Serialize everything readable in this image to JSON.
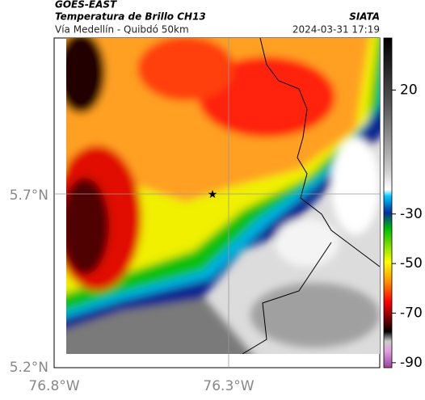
{
  "header": {
    "title": "GOES-EAST",
    "subtitle": "Temperatura de Brillo CH13",
    "source": "SIATA",
    "region": "Vía Medellín - Quibdó 50km",
    "datetime": "2024-03-31 17:19"
  },
  "axes": {
    "lat_labels": [
      "5.7°N",
      "5.2°N"
    ],
    "lon_labels": [
      "76.8°W",
      "76.3°W"
    ]
  },
  "colorbar": {
    "lim": [
      41,
      -92
    ],
    "ticks": [
      20,
      -30,
      -50,
      -70,
      -90
    ]
  }
}
